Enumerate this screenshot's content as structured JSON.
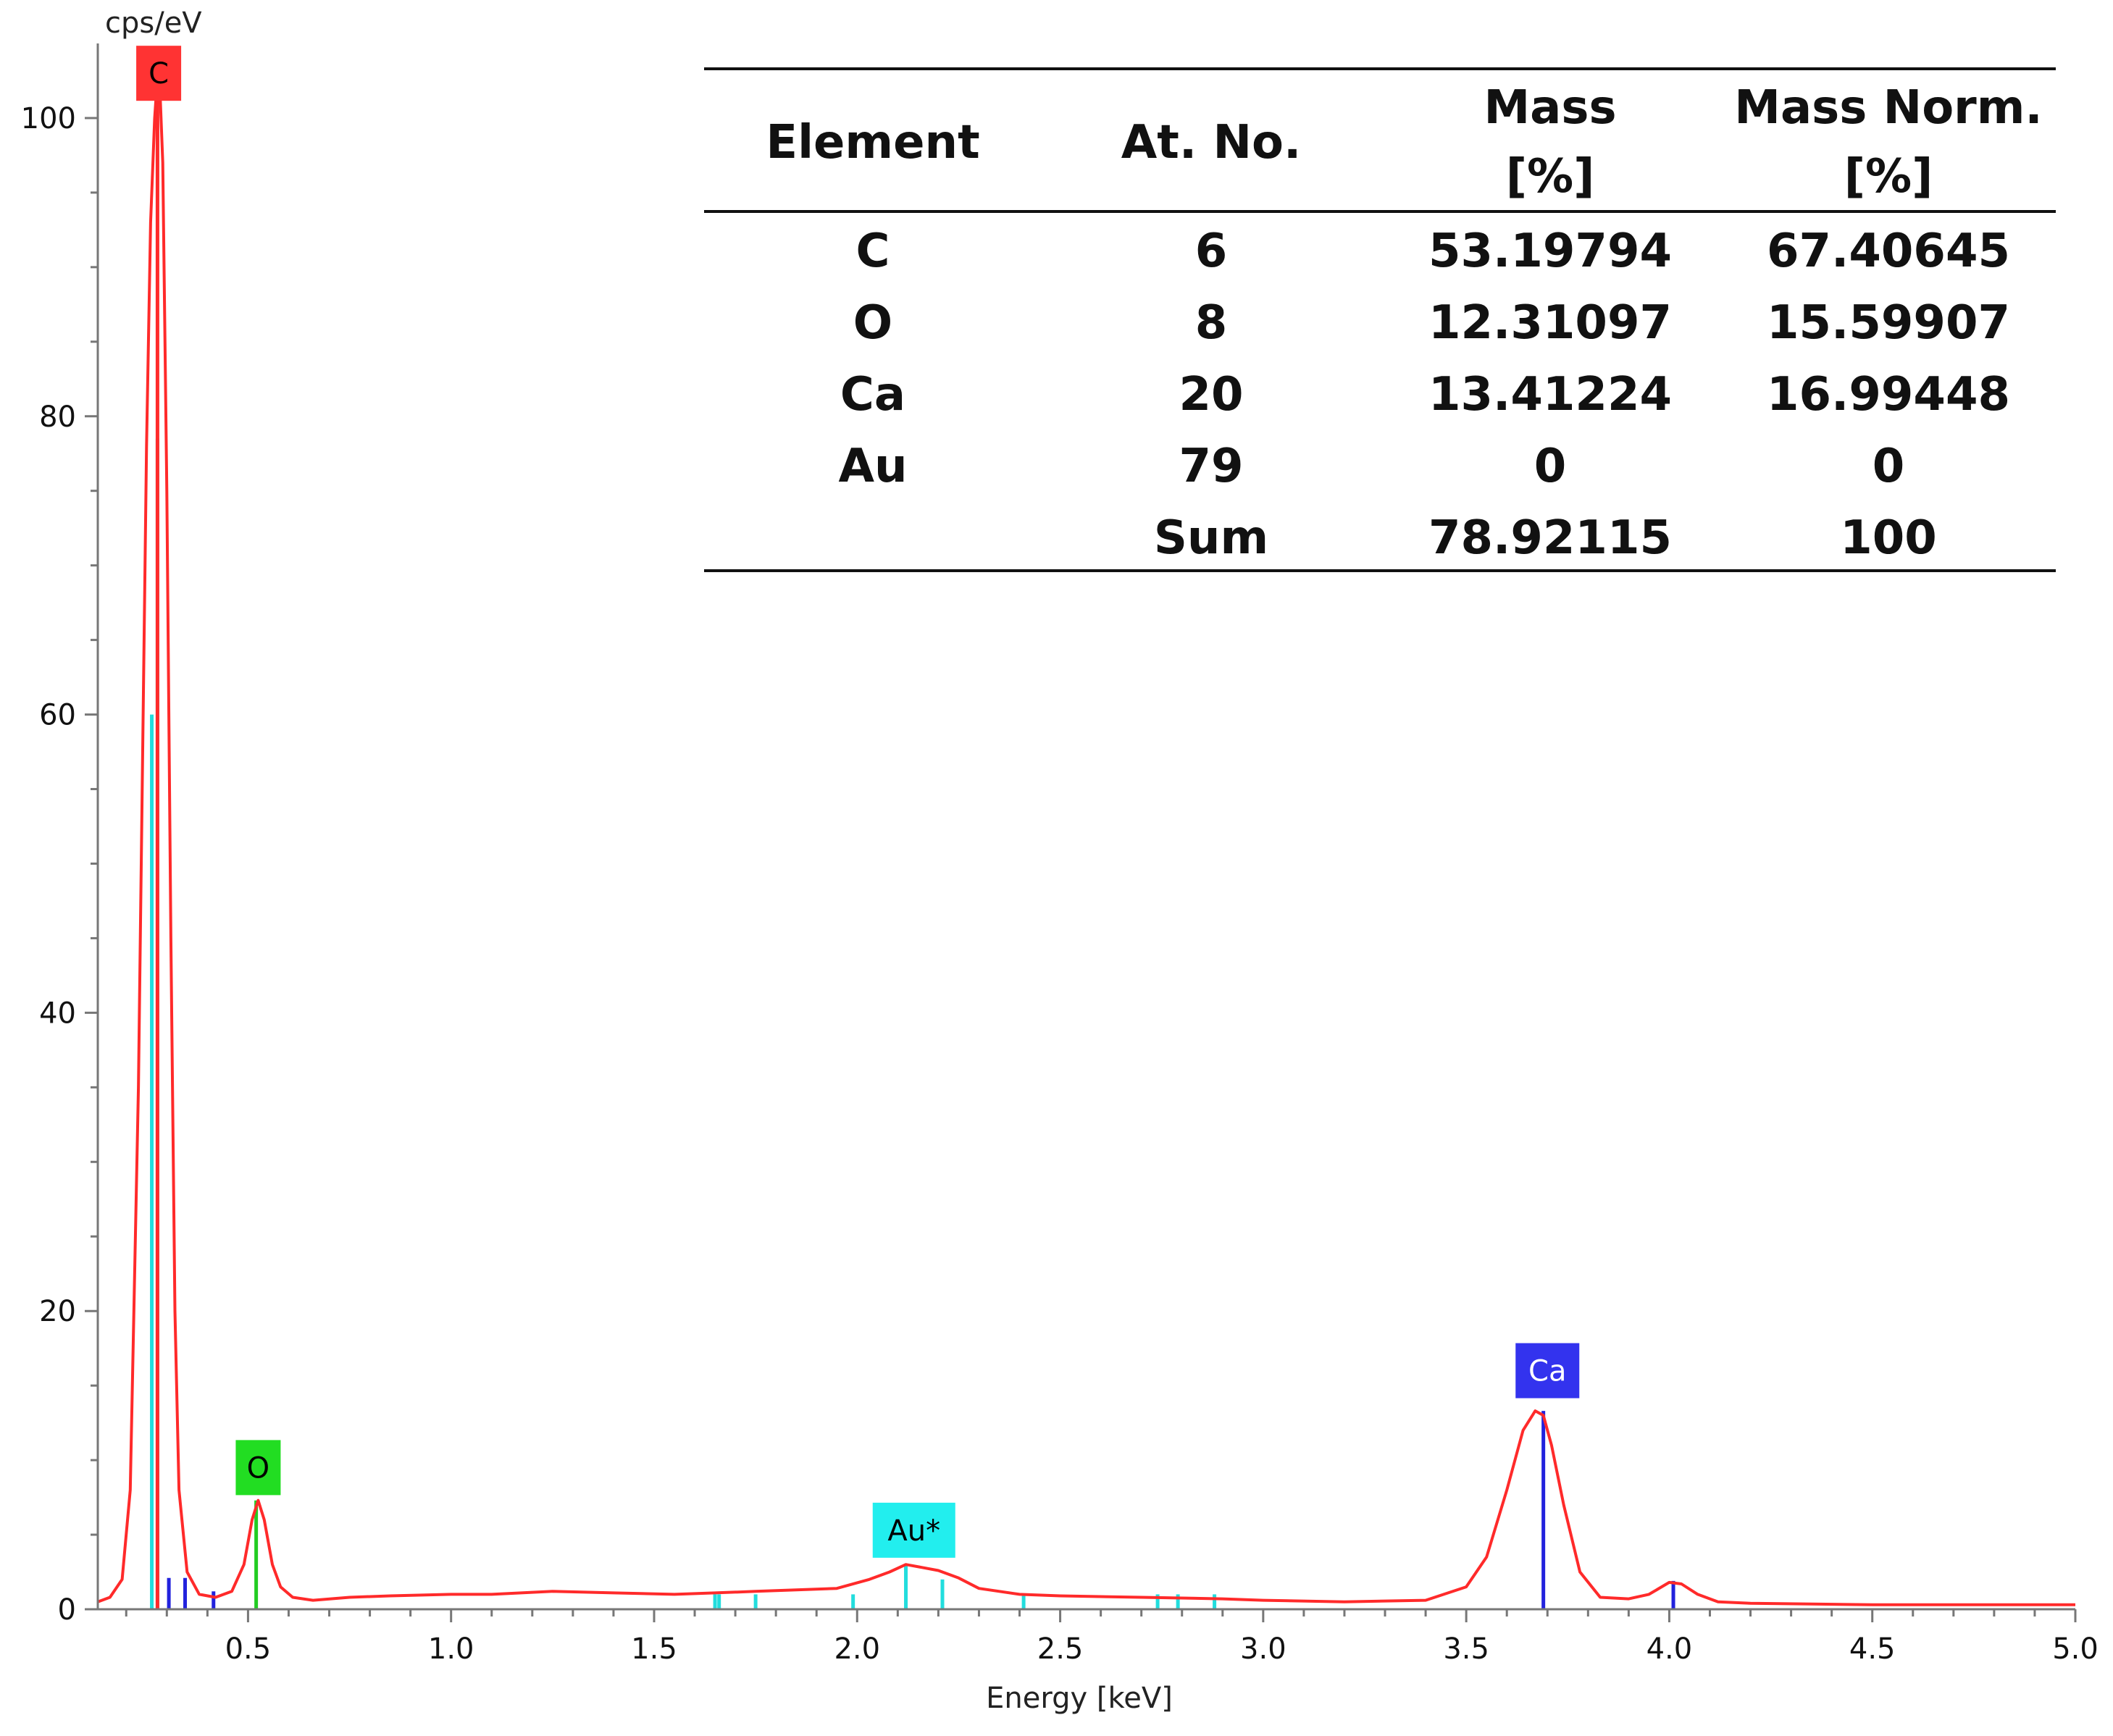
{
  "chart_data": {
    "type": "line",
    "xlabel": "Energy [keV]",
    "ylabel": "cps/eV",
    "xlim": [
      0.13,
      5.0
    ],
    "ylim": [
      0,
      105
    ],
    "x_ticks": [
      0.5,
      1.0,
      1.5,
      2.0,
      2.5,
      3.0,
      3.5,
      4.0,
      4.5,
      5.0
    ],
    "x_tick_labels": [
      "0.5",
      "1.0",
      "1.5",
      "2.0",
      "2.5",
      "3.0",
      "3.5",
      "4.0",
      "4.5",
      "5.0"
    ],
    "y_ticks": [
      0,
      20,
      40,
      60,
      80,
      100
    ],
    "y_tick_labels": [
      "0",
      "20",
      "40",
      "60",
      "80",
      "100"
    ],
    "grid": false,
    "legend": "none",
    "series": [
      {
        "color": "#ff2a2a",
        "x": [
          0.13,
          0.16,
          0.19,
          0.21,
          0.23,
          0.25,
          0.26,
          0.27,
          0.28,
          0.29,
          0.3,
          0.31,
          0.32,
          0.33,
          0.35,
          0.38,
          0.42,
          0.46,
          0.49,
          0.51,
          0.525,
          0.54,
          0.56,
          0.58,
          0.61,
          0.66,
          0.75,
          0.85,
          1.0,
          1.1,
          1.25,
          1.4,
          1.55,
          1.65,
          1.75,
          1.85,
          1.95,
          2.03,
          2.08,
          2.12,
          2.16,
          2.2,
          2.25,
          2.3,
          2.4,
          2.5,
          2.7,
          2.9,
          3.0,
          3.2,
          3.4,
          3.5,
          3.55,
          3.6,
          3.64,
          3.67,
          3.69,
          3.71,
          3.74,
          3.78,
          3.83,
          3.9,
          3.95,
          4.0,
          4.03,
          4.07,
          4.12,
          4.2,
          4.35,
          4.5,
          4.7,
          4.85,
          5.0
        ],
        "y": [
          0.5,
          0.8,
          2,
          8,
          35,
          78,
          93,
          100,
          104,
          97,
          75,
          45,
          20,
          8,
          2.5,
          1.0,
          0.8,
          1.2,
          3,
          6,
          7.3,
          6,
          3,
          1.5,
          0.8,
          0.6,
          0.8,
          0.9,
          1.0,
          1.0,
          1.2,
          1.1,
          1.0,
          1.1,
          1.2,
          1.3,
          1.4,
          2.0,
          2.5,
          3.0,
          2.8,
          2.6,
          2.1,
          1.4,
          1.0,
          0.9,
          0.8,
          0.7,
          0.6,
          0.5,
          0.6,
          1.5,
          3.5,
          8,
          12,
          13.3,
          13.0,
          11,
          7,
          2.5,
          0.8,
          0.7,
          1.0,
          1.8,
          1.7,
          1.0,
          0.5,
          0.4,
          0.35,
          0.3,
          0.3,
          0.3,
          0.3
        ]
      }
    ],
    "element_lines": [
      {
        "x": 0.263,
        "y": 60,
        "color": "#22dddd"
      },
      {
        "x": 0.277,
        "y": 78.5,
        "color": "#22dddd"
      },
      {
        "x": 0.277,
        "y": 104,
        "color": "#ff2a2a"
      },
      {
        "x": 0.52,
        "y": 7.3,
        "color": "#22cc22"
      },
      {
        "x": 0.305,
        "y": 2.1,
        "color": "#2222dd"
      },
      {
        "x": 0.345,
        "y": 2.1,
        "color": "#2222dd"
      },
      {
        "x": 0.415,
        "y": 1.2,
        "color": "#2222dd"
      },
      {
        "x": 1.65,
        "y": 1.0,
        "color": "#22dddd"
      },
      {
        "x": 1.66,
        "y": 1.0,
        "color": "#22dddd"
      },
      {
        "x": 1.75,
        "y": 1.0,
        "color": "#22dddd"
      },
      {
        "x": 1.99,
        "y": 1.0,
        "color": "#22dddd"
      },
      {
        "x": 2.12,
        "y": 3.0,
        "color": "#22dddd"
      },
      {
        "x": 2.21,
        "y": 2.0,
        "color": "#22dddd"
      },
      {
        "x": 2.41,
        "y": 1.0,
        "color": "#22dddd"
      },
      {
        "x": 2.74,
        "y": 1.0,
        "color": "#22dddd"
      },
      {
        "x": 2.79,
        "y": 1.0,
        "color": "#22dddd"
      },
      {
        "x": 2.88,
        "y": 1.0,
        "color": "#22dddd"
      },
      {
        "x": 3.69,
        "y": 13.3,
        "color": "#2222dd"
      },
      {
        "x": 4.01,
        "y": 1.9,
        "color": "#2222dd"
      }
    ],
    "peak_labels": [
      {
        "label": "C",
        "x": 0.28,
        "y": 103,
        "bg": "#ff3333",
        "fg": "#000000"
      },
      {
        "label": "O",
        "x": 0.525,
        "y": 9.5,
        "bg": "#22dd22",
        "fg": "#000000"
      },
      {
        "label": "Au*",
        "x": 2.14,
        "y": 5.3,
        "bg": "#22eeee",
        "fg": "#000000"
      },
      {
        "label": "Ca",
        "x": 3.7,
        "y": 16.0,
        "bg": "#3333ee",
        "fg": "#ffffff"
      }
    ]
  },
  "table": {
    "headers": [
      {
        "line1": "Element",
        "line2": ""
      },
      {
        "line1": "At. No.",
        "line2": ""
      },
      {
        "line1": "Mass",
        "line2": "[%]"
      },
      {
        "line1": "Mass Norm.",
        "line2": "[%]"
      }
    ],
    "rows": [
      [
        "C",
        "6",
        "53.19794",
        "67.40645"
      ],
      [
        "O",
        "8",
        "12.31097",
        "15.59907"
      ],
      [
        "Ca",
        "20",
        "13.41224",
        "16.99448"
      ],
      [
        "Au",
        "79",
        "0",
        "0"
      ],
      [
        "",
        "Sum",
        "78.92115",
        "100"
      ]
    ]
  }
}
